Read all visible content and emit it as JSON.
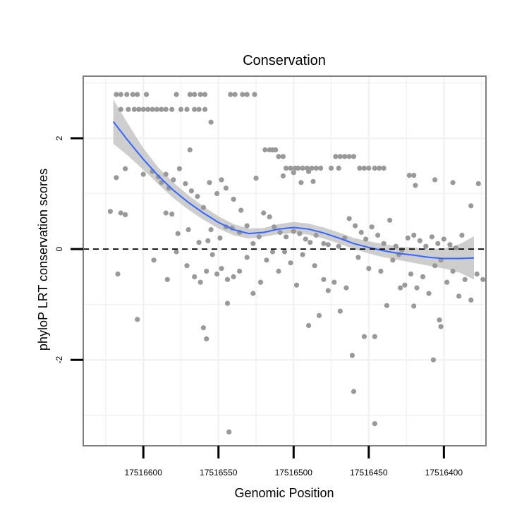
{
  "chart_data": {
    "type": "scatter",
    "title": "Conservation",
    "xlabel": "Genomic Position",
    "ylabel": "phyloP LRT conservation scores",
    "xlim": [
      17516372,
      17516640
    ],
    "x_reversed": true,
    "ylim": [
      -3.55,
      3.12
    ],
    "x_ticks": [
      17516600,
      17516550,
      17516500,
      17516450,
      17516400
    ],
    "x_tick_labels": [
      "17516600",
      "17516550",
      "17516500",
      "17516450",
      "17516400"
    ],
    "y_ticks": [
      2,
      0,
      -2
    ],
    "y_tick_labels": [
      "2",
      "0",
      "-2"
    ],
    "reference_line": {
      "y": 0,
      "style": "dashed"
    },
    "colors": {
      "points": "#999999",
      "smooth": "#3366ff",
      "ribbon": "#bdbdbd",
      "panel_border": "#7f7f7f",
      "grid": "#f2f2f2",
      "reference": "#000000"
    },
    "smooth": {
      "x": [
        17516620,
        17516610,
        17516600,
        17516590,
        17516580,
        17516570,
        17516560,
        17516550,
        17516540,
        17516530,
        17516520,
        17516510,
        17516500,
        17516490,
        17516480,
        17516470,
        17516460,
        17516450,
        17516440,
        17516430,
        17516420,
        17516410,
        17516400,
        17516390,
        17516380
      ],
      "y": [
        2.3,
        1.95,
        1.62,
        1.32,
        1.06,
        0.84,
        0.65,
        0.48,
        0.35,
        0.28,
        0.3,
        0.36,
        0.39,
        0.36,
        0.29,
        0.2,
        0.1,
        0.03,
        -0.03,
        -0.08,
        -0.11,
        -0.15,
        -0.17,
        -0.17,
        -0.16
      ],
      "lower": [
        1.9,
        1.68,
        1.43,
        1.17,
        0.92,
        0.71,
        0.53,
        0.37,
        0.25,
        0.19,
        0.22,
        0.27,
        0.29,
        0.26,
        0.19,
        0.1,
        0.0,
        -0.08,
        -0.15,
        -0.2,
        -0.25,
        -0.3,
        -0.35,
        -0.42,
        -0.55
      ],
      "upper": [
        2.7,
        2.25,
        1.82,
        1.47,
        1.2,
        0.97,
        0.77,
        0.59,
        0.45,
        0.37,
        0.38,
        0.45,
        0.49,
        0.46,
        0.39,
        0.3,
        0.2,
        0.14,
        0.09,
        0.04,
        0.03,
        0.0,
        0.01,
        0.08,
        0.23
      ]
    },
    "points": [
      {
        "x": 17516618,
        "y": 2.79
      },
      {
        "x": 17516615,
        "y": 2.79
      },
      {
        "x": 17516611,
        "y": 2.79
      },
      {
        "x": 17516607,
        "y": 2.79
      },
      {
        "x": 17516604,
        "y": 2.79
      },
      {
        "x": 17516598,
        "y": 2.79
      },
      {
        "x": 17516615,
        "y": 2.52
      },
      {
        "x": 17516610,
        "y": 2.52
      },
      {
        "x": 17516606,
        "y": 2.52
      },
      {
        "x": 17516603,
        "y": 2.52
      },
      {
        "x": 17516600,
        "y": 2.52
      },
      {
        "x": 17516597,
        "y": 2.52
      },
      {
        "x": 17516594,
        "y": 2.52
      },
      {
        "x": 17516591,
        "y": 2.52
      },
      {
        "x": 17516588,
        "y": 2.52
      },
      {
        "x": 17516585,
        "y": 2.52
      },
      {
        "x": 17516581,
        "y": 2.52
      },
      {
        "x": 17516575,
        "y": 2.52
      },
      {
        "x": 17516571,
        "y": 2.52
      },
      {
        "x": 17516578,
        "y": 2.79
      },
      {
        "x": 17516569,
        "y": 2.79
      },
      {
        "x": 17516566,
        "y": 2.79
      },
      {
        "x": 17516562,
        "y": 2.79
      },
      {
        "x": 17516559,
        "y": 2.79
      },
      {
        "x": 17516542,
        "y": 2.79
      },
      {
        "x": 17516539,
        "y": 2.79
      },
      {
        "x": 17516534,
        "y": 2.79
      },
      {
        "x": 17516531,
        "y": 2.79
      },
      {
        "x": 17516526,
        "y": 2.79
      },
      {
        "x": 17516566,
        "y": 2.52
      },
      {
        "x": 17516563,
        "y": 2.52
      },
      {
        "x": 17516559,
        "y": 2.52
      },
      {
        "x": 17516555,
        "y": 2.29
      },
      {
        "x": 17516569,
        "y": 1.79
      },
      {
        "x": 17516519,
        "y": 1.79
      },
      {
        "x": 17516516,
        "y": 1.79
      },
      {
        "x": 17516514,
        "y": 1.79
      },
      {
        "x": 17516512,
        "y": 1.79
      },
      {
        "x": 17516510,
        "y": 1.67
      },
      {
        "x": 17516507,
        "y": 1.67
      },
      {
        "x": 17516472,
        "y": 1.67
      },
      {
        "x": 17516469,
        "y": 1.67
      },
      {
        "x": 17516466,
        "y": 1.67
      },
      {
        "x": 17516463,
        "y": 1.67
      },
      {
        "x": 17516460,
        "y": 1.67
      },
      {
        "x": 17516505,
        "y": 1.46
      },
      {
        "x": 17516502,
        "y": 1.46
      },
      {
        "x": 17516499,
        "y": 1.46
      },
      {
        "x": 17516497,
        "y": 1.46
      },
      {
        "x": 17516494,
        "y": 1.46
      },
      {
        "x": 17516491,
        "y": 1.46
      },
      {
        "x": 17516488,
        "y": 1.46
      },
      {
        "x": 17516485,
        "y": 1.46
      },
      {
        "x": 17516482,
        "y": 1.46
      },
      {
        "x": 17516475,
        "y": 1.46
      },
      {
        "x": 17516470,
        "y": 1.46
      },
      {
        "x": 17516456,
        "y": 1.46
      },
      {
        "x": 17516453,
        "y": 1.46
      },
      {
        "x": 17516450,
        "y": 1.46
      },
      {
        "x": 17516446,
        "y": 1.46
      },
      {
        "x": 17516443,
        "y": 1.46
      },
      {
        "x": 17516440,
        "y": 1.46
      },
      {
        "x": 17516423,
        "y": 1.33
      },
      {
        "x": 17516420,
        "y": 1.33
      },
      {
        "x": 17516618,
        "y": 1.29
      },
      {
        "x": 17516612,
        "y": 1.45
      },
      {
        "x": 17516615,
        "y": 0.65
      },
      {
        "x": 17516612,
        "y": 0.62
      },
      {
        "x": 17516600,
        "y": 1.35
      },
      {
        "x": 17516594,
        "y": 1.4
      },
      {
        "x": 17516590,
        "y": 1.3
      },
      {
        "x": 17516588,
        "y": 1.2
      },
      {
        "x": 17516585,
        "y": 1.35
      },
      {
        "x": 17516583,
        "y": 1.1
      },
      {
        "x": 17516580,
        "y": 1.25
      },
      {
        "x": 17516576,
        "y": 1.45
      },
      {
        "x": 17516572,
        "y": 1.18
      },
      {
        "x": 17516568,
        "y": 1.05
      },
      {
        "x": 17516564,
        "y": 0.95
      },
      {
        "x": 17516560,
        "y": 0.75
      },
      {
        "x": 17516556,
        "y": 1.2
      },
      {
        "x": 17516551,
        "y": 1.0
      },
      {
        "x": 17516548,
        "y": 1.25
      },
      {
        "x": 17516545,
        "y": 1.1
      },
      {
        "x": 17516540,
        "y": 0.9
      },
      {
        "x": 17516535,
        "y": 0.7
      },
      {
        "x": 17516525,
        "y": 1.28
      },
      {
        "x": 17516507,
        "y": 1.32
      },
      {
        "x": 17516500,
        "y": 1.38
      },
      {
        "x": 17516495,
        "y": 1.2
      },
      {
        "x": 17516490,
        "y": 1.4
      },
      {
        "x": 17516487,
        "y": 1.22
      },
      {
        "x": 17516419,
        "y": 1.15
      },
      {
        "x": 17516406,
        "y": 1.25
      },
      {
        "x": 17516394,
        "y": 1.2
      },
      {
        "x": 17516622,
        "y": 0.68
      },
      {
        "x": 17516585,
        "y": 0.65
      },
      {
        "x": 17516581,
        "y": 0.63
      },
      {
        "x": 17516577,
        "y": 0.28
      },
      {
        "x": 17516570,
        "y": 0.35
      },
      {
        "x": 17516563,
        "y": 0.12
      },
      {
        "x": 17516557,
        "y": 0.15
      },
      {
        "x": 17516555,
        "y": 0.35
      },
      {
        "x": 17516549,
        "y": 0.2
      },
      {
        "x": 17516545,
        "y": 0.4
      },
      {
        "x": 17516541,
        "y": 0.38
      },
      {
        "x": 17516536,
        "y": 0.3
      },
      {
        "x": 17516531,
        "y": 0.42
      },
      {
        "x": 17516527,
        "y": 0.1
      },
      {
        "x": 17516523,
        "y": 0.22
      },
      {
        "x": 17516520,
        "y": 0.65
      },
      {
        "x": 17516516,
        "y": 0.58
      },
      {
        "x": 17516513,
        "y": 0.4
      },
      {
        "x": 17516509,
        "y": 0.3
      },
      {
        "x": 17516505,
        "y": 0.22
      },
      {
        "x": 17516500,
        "y": 0.32
      },
      {
        "x": 17516496,
        "y": 0.28
      },
      {
        "x": 17516492,
        "y": 0.18
      },
      {
        "x": 17516489,
        "y": 0.12
      },
      {
        "x": 17516485,
        "y": 0.25
      },
      {
        "x": 17516480,
        "y": 0.1
      },
      {
        "x": 17516477,
        "y": 0.08
      },
      {
        "x": 17516470,
        "y": 0.05
      },
      {
        "x": 17516466,
        "y": 0.2
      },
      {
        "x": 17516463,
        "y": 0.55
      },
      {
        "x": 17516459,
        "y": 0.42
      },
      {
        "x": 17516455,
        "y": 0.3
      },
      {
        "x": 17516452,
        "y": 0.18
      },
      {
        "x": 17516448,
        "y": 0.4
      },
      {
        "x": 17516444,
        "y": 0.25
      },
      {
        "x": 17516440,
        "y": 0.1
      },
      {
        "x": 17516436,
        "y": 0.52
      },
      {
        "x": 17516432,
        "y": 0.05
      },
      {
        "x": 17516428,
        "y": -0.02
      },
      {
        "x": 17516424,
        "y": 0.2
      },
      {
        "x": 17516420,
        "y": 0.25
      },
      {
        "x": 17516416,
        "y": 0.15
      },
      {
        "x": 17516412,
        "y": 0.05
      },
      {
        "x": 17516408,
        "y": 0.22
      },
      {
        "x": 17516404,
        "y": 0.1
      },
      {
        "x": 17516400,
        "y": 0.18
      },
      {
        "x": 17516396,
        "y": 0.08
      },
      {
        "x": 17516392,
        "y": 0.02
      },
      {
        "x": 17516388,
        "y": 0.25
      },
      {
        "x": 17516382,
        "y": 0.78
      },
      {
        "x": 17516377,
        "y": 1.18
      },
      {
        "x": 17516617,
        "y": -0.45
      },
      {
        "x": 17516604,
        "y": -1.27
      },
      {
        "x": 17516593,
        "y": -0.2
      },
      {
        "x": 17516584,
        "y": -0.55
      },
      {
        "x": 17516578,
        "y": -0.05
      },
      {
        "x": 17516571,
        "y": -0.3
      },
      {
        "x": 17516566,
        "y": -0.5
      },
      {
        "x": 17516562,
        "y": -0.6
      },
      {
        "x": 17516558,
        "y": -0.4
      },
      {
        "x": 17516554,
        "y": -0.1
      },
      {
        "x": 17516551,
        "y": -0.45
      },
      {
        "x": 17516548,
        "y": -0.35
      },
      {
        "x": 17516544,
        "y": -0.55
      },
      {
        "x": 17516540,
        "y": -0.5
      },
      {
        "x": 17516536,
        "y": -0.4
      },
      {
        "x": 17516531,
        "y": -0.15
      },
      {
        "x": 17516527,
        "y": -0.8
      },
      {
        "x": 17516522,
        "y": -0.6
      },
      {
        "x": 17516518,
        "y": -0.2
      },
      {
        "x": 17516514,
        "y": -0.05
      },
      {
        "x": 17516510,
        "y": -0.4
      },
      {
        "x": 17516506,
        "y": -0.05
      },
      {
        "x": 17516502,
        "y": -0.25
      },
      {
        "x": 17516498,
        "y": -0.65
      },
      {
        "x": 17516494,
        "y": -0.1
      },
      {
        "x": 17516490,
        "y": -1.38
      },
      {
        "x": 17516486,
        "y": -0.3
      },
      {
        "x": 17516483,
        "y": -1.2
      },
      {
        "x": 17516480,
        "y": -0.55
      },
      {
        "x": 17516477,
        "y": -0.75
      },
      {
        "x": 17516473,
        "y": -0.6
      },
      {
        "x": 17516469,
        "y": -1.12
      },
      {
        "x": 17516465,
        "y": -0.7
      },
      {
        "x": 17516461,
        "y": -1.92
      },
      {
        "x": 17516457,
        "y": -0.15
      },
      {
        "x": 17516453,
        "y": -1.58
      },
      {
        "x": 17516450,
        "y": -0.35
      },
      {
        "x": 17516446,
        "y": -1.58
      },
      {
        "x": 17516442,
        "y": -0.4
      },
      {
        "x": 17516438,
        "y": -1.02
      },
      {
        "x": 17516434,
        "y": -0.2
      },
      {
        "x": 17516430,
        "y": -0.1
      },
      {
        "x": 17516426,
        "y": -0.65
      },
      {
        "x": 17516422,
        "y": -0.45
      },
      {
        "x": 17516418,
        "y": -0.7
      },
      {
        "x": 17516414,
        "y": -0.5
      },
      {
        "x": 17516410,
        "y": -0.8
      },
      {
        "x": 17516406,
        "y": -0.3
      },
      {
        "x": 17516402,
        "y": -0.2
      },
      {
        "x": 17516398,
        "y": -0.6
      },
      {
        "x": 17516394,
        "y": -0.4
      },
      {
        "x": 17516390,
        "y": -0.85
      },
      {
        "x": 17516386,
        "y": -0.55
      },
      {
        "x": 17516382,
        "y": -0.92
      },
      {
        "x": 17516378,
        "y": -0.45
      },
      {
        "x": 17516374,
        "y": -0.55
      },
      {
        "x": 17516560,
        "y": -1.42
      },
      {
        "x": 17516558,
        "y": -1.62
      },
      {
        "x": 17516544,
        "y": -0.98
      },
      {
        "x": 17516543,
        "y": -3.3
      },
      {
        "x": 17516460,
        "y": -2.57
      },
      {
        "x": 17516446,
        "y": -3.15
      },
      {
        "x": 17516429,
        "y": -0.7
      },
      {
        "x": 17516420,
        "y": -1.03
      },
      {
        "x": 17516407,
        "y": -2.0
      },
      {
        "x": 17516403,
        "y": -1.28
      },
      {
        "x": 17516402,
        "y": -1.4
      }
    ]
  }
}
